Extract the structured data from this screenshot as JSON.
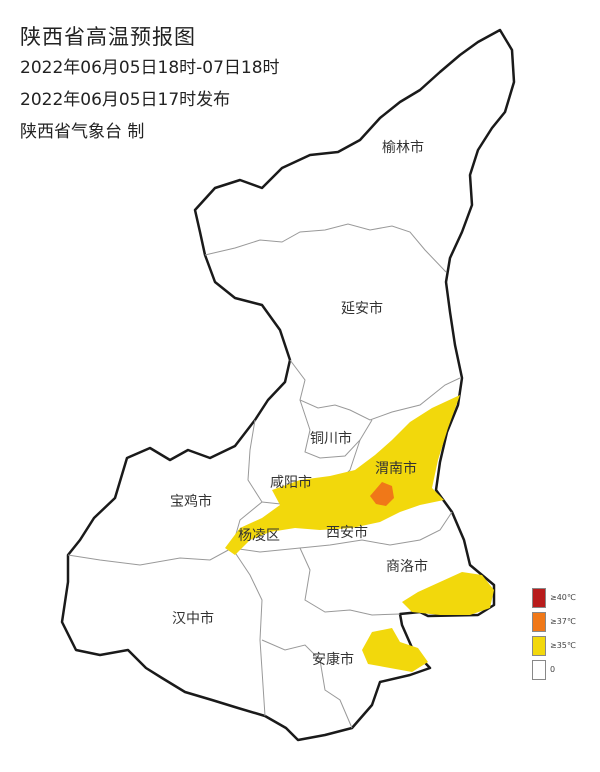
{
  "header": {
    "title": "陕西省高温预报图",
    "period": "2022年06月05日18时-07日18时",
    "issued": "2022年06月05日17时发布",
    "issuer": "陕西省气象台 制"
  },
  "cities": {
    "yulin": "榆林市",
    "yanan": "延安市",
    "tongchuan": "铜川市",
    "xianyang": "咸阳市",
    "weinan": "渭南市",
    "baoji": "宝鸡市",
    "yangling": "杨凌区",
    "xian": "西安市",
    "shangluo": "商洛市",
    "hanzhong": "汉中市",
    "ankang": "安康市"
  },
  "legend": [
    {
      "label": "≥40℃",
      "color": "#b81c1c"
    },
    {
      "label": "≥37℃",
      "color": "#f07818"
    },
    {
      "label": "≥35℃",
      "color": "#f2d80c"
    },
    {
      "label": "0",
      "color": "#ffffff"
    }
  ],
  "colors": {
    "zone_35": "#f2d80c",
    "zone_37": "#f07818",
    "border": "#1a1a1a",
    "city_border": "#999999"
  }
}
